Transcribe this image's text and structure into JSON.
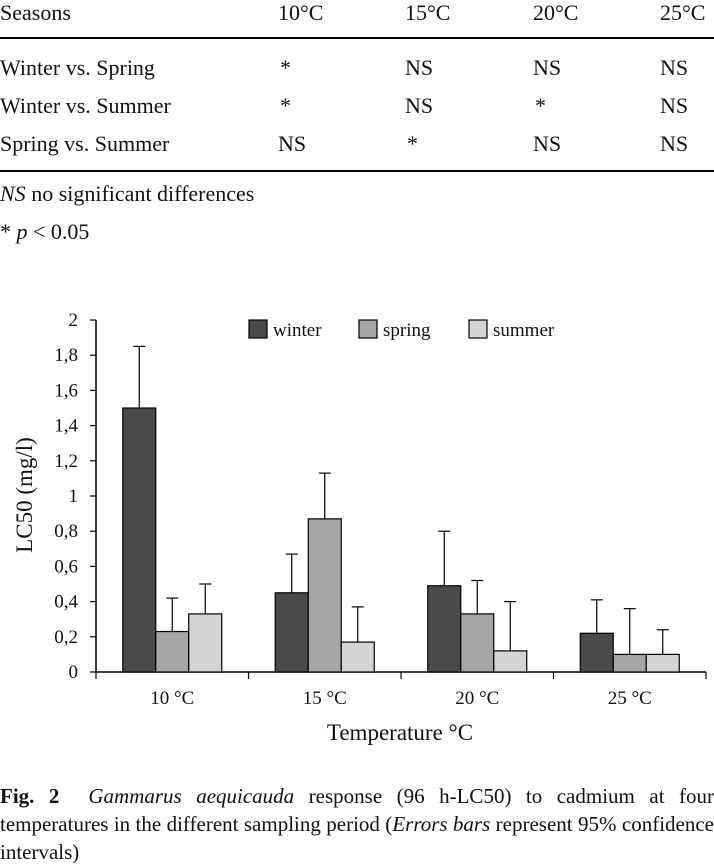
{
  "table": {
    "header": [
      "Seasons",
      "10°C",
      "15°C",
      "20°C",
      "25°C"
    ],
    "rows": [
      [
        "Winter vs. Spring",
        "*",
        "NS",
        "NS",
        "NS"
      ],
      [
        "Winter vs. Summer",
        "*",
        "NS",
        "*",
        "NS"
      ],
      [
        "Spring vs. Summer",
        "NS",
        "*",
        "NS",
        "NS"
      ]
    ],
    "footnote_ns_abbrev": "NS",
    "footnote_ns_text": " no significant differences",
    "footnote_p_star": "* ",
    "footnote_p_var": "p",
    "footnote_p_rest": " < 0.05"
  },
  "chart_data": {
    "type": "bar",
    "categories": [
      "10 °C",
      "15 °C",
      "20 °C",
      "25 °C"
    ],
    "series": [
      {
        "name": "winter",
        "color": "#4a4a4a",
        "values": [
          1.5,
          0.45,
          0.49,
          0.22
        ],
        "error_upper": [
          1.85,
          0.67,
          0.8,
          0.41
        ]
      },
      {
        "name": "spring",
        "color": "#a6a6a6",
        "values": [
          0.23,
          0.87,
          0.33,
          0.1
        ],
        "error_upper": [
          0.42,
          1.13,
          0.52,
          0.36
        ]
      },
      {
        "name": "summer",
        "color": "#d4d4d4",
        "values": [
          0.33,
          0.17,
          0.12,
          0.1
        ],
        "error_upper": [
          0.5,
          0.37,
          0.4,
          0.24
        ]
      }
    ],
    "ylim": [
      0,
      2
    ],
    "yticks": [
      "0",
      "0,2",
      "0,4",
      "0,6",
      "0,8",
      "1",
      "1,2",
      "1,4",
      "1,6",
      "1,8",
      "2"
    ],
    "ylabel": "LC50 (mg/l)",
    "xlabel": "Temperature °C",
    "legend_position": "top"
  },
  "caption": {
    "label": "Fig. 2",
    "species": "Gammarus aequicauda",
    "text1": " response (96 h-LC50) to cadmium at four temperatures in the different sampling period (",
    "italic2": "Errors bars",
    "text2": " represent 95% confidence intervals)"
  }
}
